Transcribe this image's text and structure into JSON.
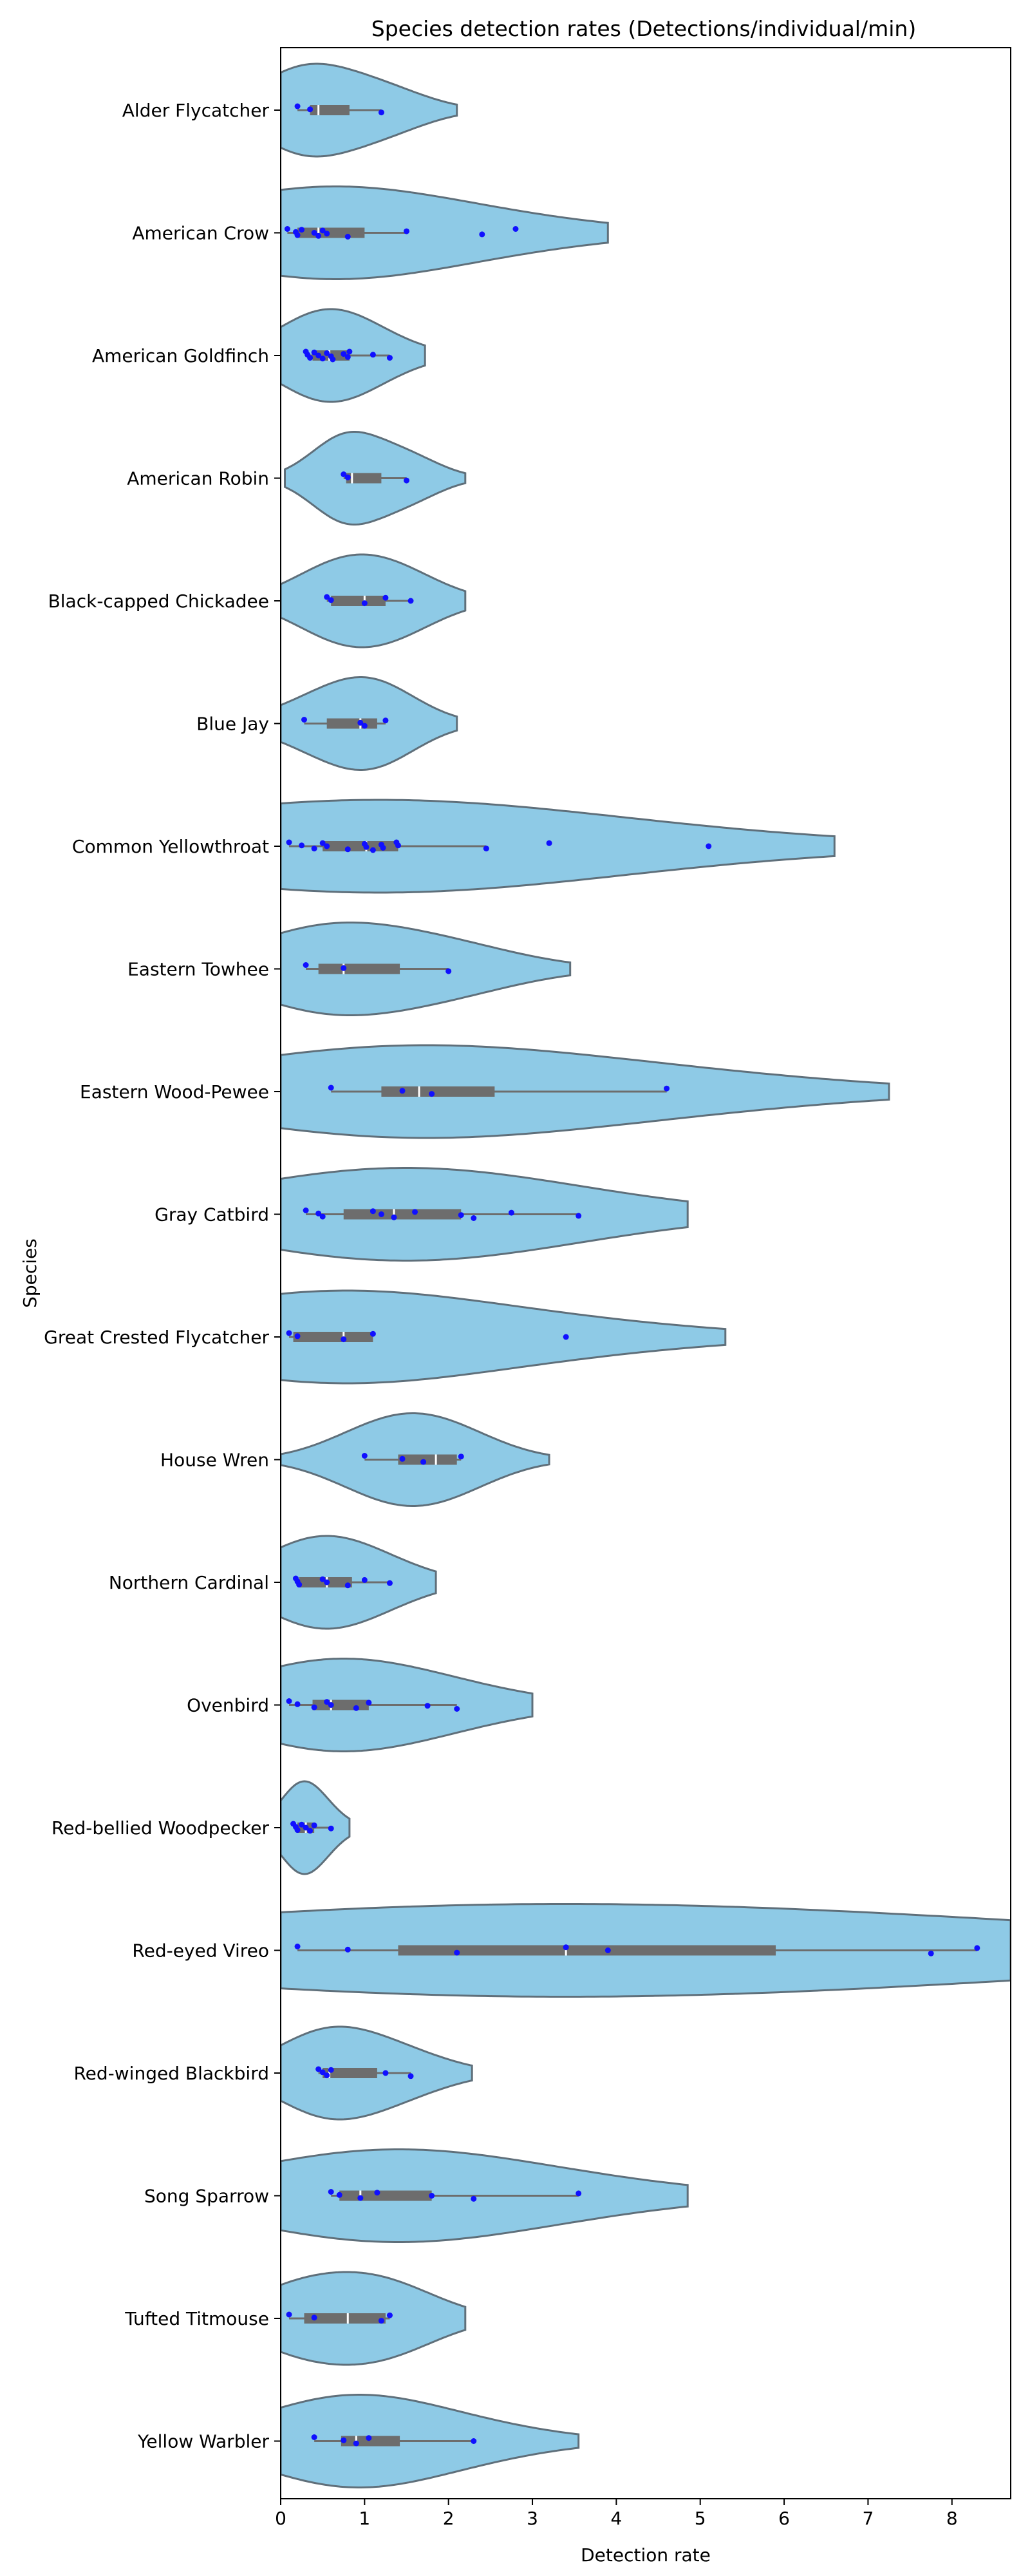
{
  "chart_data": {
    "type": "violin",
    "orientation": "horizontal",
    "title": "Species detection rates (Detections/individual/min)",
    "xlabel": "Detection rate",
    "ylabel": "Species",
    "xlim": [
      0,
      8.7
    ],
    "xticks": [
      0,
      1,
      2,
      3,
      4,
      5,
      6,
      7,
      8
    ],
    "grid": false,
    "colors": {
      "violin_fill": "#8ecae6",
      "violin_edge": "#5f6f7a",
      "box": "#6d6d6d",
      "points": "#1010ff",
      "median": "#ffffff"
    },
    "categories": [
      "Alder Flycatcher",
      "American Crow",
      "American Goldfinch",
      "American Robin",
      "Black-capped Chickadee",
      "Blue Jay",
      "Common Yellowthroat",
      "Eastern Towhee",
      "Eastern Wood-Pewee",
      "Gray Catbird",
      "Great Crested Flycatcher",
      "House Wren",
      "Northern Cardinal",
      "Ovenbird",
      "Red-bellied Woodpecker",
      "Red-eyed Vireo",
      "Red-winged Blackbird",
      "Song Sparrow",
      "Tufted Titmouse",
      "Yellow Warbler"
    ],
    "series": [
      {
        "species": "Alder Flycatcher",
        "points": [
          0.2,
          0.35,
          1.2
        ],
        "q1": 0.35,
        "median": 0.45,
        "q3": 0.82,
        "whisker": [
          0.2,
          1.2
        ],
        "kde_range": [
          0.0,
          2.1
        ]
      },
      {
        "species": "American Crow",
        "points": [
          0.08,
          0.18,
          0.2,
          0.25,
          0.4,
          0.45,
          0.5,
          0.55,
          0.8,
          1.5,
          2.4,
          2.8
        ],
        "q1": 0.2,
        "median": 0.45,
        "q3": 1.0,
        "whisker": [
          0.08,
          1.5
        ],
        "kde_range": [
          0.0,
          3.9
        ]
      },
      {
        "species": "American Goldfinch",
        "points": [
          0.3,
          0.32,
          0.35,
          0.4,
          0.45,
          0.5,
          0.55,
          0.6,
          0.62,
          0.75,
          0.8,
          0.82,
          1.1,
          1.3
        ],
        "q1": 0.38,
        "median": 0.58,
        "q3": 0.82,
        "whisker": [
          0.3,
          1.3
        ],
        "kde_range": [
          0.0,
          1.72
        ]
      },
      {
        "species": "American Robin",
        "points": [
          0.75,
          0.8,
          1.5
        ],
        "q1": 0.78,
        "median": 0.85,
        "q3": 1.2,
        "whisker": [
          0.75,
          1.5
        ],
        "kde_range": [
          0.05,
          2.2
        ]
      },
      {
        "species": "Black-capped Chickadee",
        "points": [
          0.55,
          0.6,
          1.0,
          1.25,
          1.55
        ],
        "q1": 0.6,
        "median": 1.0,
        "q3": 1.25,
        "whisker": [
          0.55,
          1.55
        ],
        "kde_range": [
          0.0,
          2.2
        ]
      },
      {
        "species": "Blue Jay",
        "points": [
          0.28,
          0.95,
          1.0,
          1.25
        ],
        "q1": 0.55,
        "median": 0.95,
        "q3": 1.15,
        "whisker": [
          0.28,
          1.25
        ],
        "kde_range": [
          0.0,
          2.1
        ]
      },
      {
        "species": "Common Yellowthroat",
        "points": [
          0.1,
          0.25,
          0.4,
          0.5,
          0.55,
          0.8,
          1.0,
          1.02,
          1.1,
          1.2,
          1.22,
          1.38,
          1.4,
          2.45,
          3.2,
          5.1
        ],
        "q1": 0.5,
        "median": 1.02,
        "q3": 1.4,
        "whisker": [
          0.1,
          2.45
        ],
        "kde_range": [
          0.0,
          6.6
        ]
      },
      {
        "species": "Eastern Towhee",
        "points": [
          0.3,
          0.75,
          2.0
        ],
        "q1": 0.45,
        "median": 0.75,
        "q3": 1.42,
        "whisker": [
          0.3,
          2.0
        ],
        "kde_range": [
          0.0,
          3.45
        ]
      },
      {
        "species": "Eastern Wood-Pewee",
        "points": [
          0.6,
          1.45,
          1.8,
          4.6
        ],
        "q1": 1.2,
        "median": 1.65,
        "q3": 2.55,
        "whisker": [
          0.6,
          4.6
        ],
        "kde_range": [
          0.0,
          7.25
        ]
      },
      {
        "species": "Gray Catbird",
        "points": [
          0.3,
          0.45,
          0.5,
          1.1,
          1.2,
          1.35,
          1.6,
          2.15,
          2.3,
          2.75,
          3.55
        ],
        "q1": 0.75,
        "median": 1.35,
        "q3": 2.15,
        "whisker": [
          0.3,
          3.55
        ],
        "kde_range": [
          0.0,
          4.85
        ]
      },
      {
        "species": "Great Crested Flycatcher",
        "points": [
          0.1,
          0.2,
          0.75,
          1.1,
          3.4
        ],
        "q1": 0.15,
        "median": 0.75,
        "q3": 1.1,
        "whisker": [
          0.1,
          1.1
        ],
        "kde_range": [
          0.0,
          5.3
        ]
      },
      {
        "species": "House Wren",
        "points": [
          1.0,
          1.45,
          1.7,
          2.15
        ],
        "q1": 1.4,
        "median": 1.85,
        "q3": 2.1,
        "whisker": [
          1.0,
          2.15
        ],
        "kde_range": [
          0.0,
          3.2
        ]
      },
      {
        "species": "Northern Cardinal",
        "points": [
          0.18,
          0.2,
          0.22,
          0.5,
          0.55,
          0.8,
          1.0,
          1.3
        ],
        "q1": 0.22,
        "median": 0.55,
        "q3": 0.85,
        "whisker": [
          0.18,
          1.3
        ],
        "kde_range": [
          0.0,
          1.85
        ]
      },
      {
        "species": "Ovenbird",
        "points": [
          0.1,
          0.2,
          0.4,
          0.55,
          0.6,
          0.9,
          1.05,
          1.75,
          2.1
        ],
        "q1": 0.38,
        "median": 0.6,
        "q3": 1.05,
        "whisker": [
          0.1,
          2.1
        ],
        "kde_range": [
          0.0,
          3.0
        ]
      },
      {
        "species": "Red-bellied Woodpecker",
        "points": [
          0.15,
          0.18,
          0.2,
          0.25,
          0.3,
          0.35,
          0.4,
          0.6
        ],
        "q1": 0.2,
        "median": 0.3,
        "q3": 0.4,
        "whisker": [
          0.15,
          0.6
        ],
        "kde_range": [
          0.0,
          0.82
        ]
      },
      {
        "species": "Red-eyed Vireo",
        "points": [
          0.2,
          0.8,
          2.1,
          3.4,
          3.9,
          7.75,
          8.3
        ],
        "q1": 1.4,
        "median": 3.4,
        "q3": 5.9,
        "whisker": [
          0.2,
          8.3
        ],
        "kde_range": [
          0.0,
          8.7
        ]
      },
      {
        "species": "Red-winged Blackbird",
        "points": [
          0.45,
          0.5,
          0.55,
          0.6,
          1.25,
          1.55
        ],
        "q1": 0.5,
        "median": 0.58,
        "q3": 1.15,
        "whisker": [
          0.45,
          1.55
        ],
        "kde_range": [
          0.0,
          2.28
        ]
      },
      {
        "species": "Song Sparrow",
        "points": [
          0.6,
          0.7,
          0.95,
          1.15,
          1.8,
          2.3,
          3.55
        ],
        "q1": 0.7,
        "median": 0.95,
        "q3": 1.8,
        "whisker": [
          0.6,
          3.55
        ],
        "kde_range": [
          0.0,
          4.85
        ]
      },
      {
        "species": "Tufted Titmouse",
        "points": [
          0.1,
          0.4,
          1.2,
          1.3
        ],
        "q1": 0.28,
        "median": 0.8,
        "q3": 1.25,
        "whisker": [
          0.1,
          1.3
        ],
        "kde_range": [
          0.0,
          2.2
        ]
      },
      {
        "species": "Yellow Warbler",
        "points": [
          0.4,
          0.75,
          0.9,
          1.05,
          2.3
        ],
        "q1": 0.72,
        "median": 0.9,
        "q3": 1.42,
        "whisker": [
          0.4,
          2.3
        ],
        "kde_range": [
          0.0,
          3.55
        ]
      }
    ]
  }
}
